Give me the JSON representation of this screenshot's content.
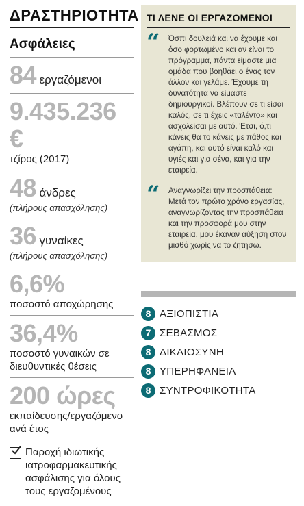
{
  "left": {
    "title": "ΔΡΑΣΤΗΡΙΟΤΗΤΑ",
    "sector": "Ασφάλειες",
    "stats": [
      {
        "big": "84",
        "inline": "εργαζόμενοι",
        "label": "",
        "note": ""
      },
      {
        "big": "9.435.236 €",
        "inline": "",
        "label": "τζίρος (2017)",
        "note": ""
      },
      {
        "big": "48",
        "inline": "άνδρες",
        "label": "",
        "note": "(πλήρους απασχόλησης)"
      },
      {
        "big": "36",
        "inline": "γυναίκες",
        "label": "",
        "note": "(πλήρους απασχόλησης)"
      },
      {
        "big": "6,6%",
        "inline": "",
        "label": "ποσοστό αποχώρησης",
        "note": ""
      },
      {
        "big": "36,4%",
        "inline": "",
        "label": "ποσοστό γυναικών σε διευθυντικές θέσεις",
        "note": ""
      },
      {
        "big": "200 ώρες",
        "inline": "",
        "label": "εκπαίδευσης/εργαζόμενο ανά έτος",
        "note": ""
      }
    ],
    "benefit": "Παροχή ιδιωτικής ιατροφαρμακευτικής ασφάλισης για όλους τους εργαζομένους",
    "check_icon": "checkmark-icon"
  },
  "right": {
    "heading": "ΤΙ ΛΕΝΕ ΟΙ ΕΡΓΑΖΟΜΕΝΟΙ",
    "quote_mark": "“",
    "quotes": [
      "Όσπι δουλειά και να έχουμε και όσο φορτωμένο και αν είναι το πρόγραμμα, πάντα είμαστε μια ομάδα που βοηθάει ο ένας τον άλλον και γελάμε. Έχουμε τη δυνατότητα να είμαστε δημιουργικοί. Βλέπουν σε τι είσαι καλός, σε τι έχεις «ταλέντο» και ασχολείσαι με αυτό. Έτσι, ό,τι κάνεις θα το κάνεις με πάθος και αγάπη, και αυτό είναι καλό και υγιές και για σένα, και για την εταιρεία.",
      "Αναγνωρίζει την προσπάθεια: Μετά τον πρώτο χρόνο εργασίας, αναγνωρίζοντας την προσπάθεια και την προσφορά μου στην εταιρεία, μου έκαναν αύξηση στον μισθό χωρίς να το ζητήσω."
    ],
    "values": [
      {
        "score": "8",
        "label": "ΑΞΙΟΠΙΣΤΙΑ"
      },
      {
        "score": "7",
        "label": "ΣΕΒΑΣΜΟΣ"
      },
      {
        "score": "8",
        "label": "ΔΙΚΑΙΟΣΥΝΗ"
      },
      {
        "score": "8",
        "label": "ΥΠΕΡΗΦΑΝΕΙΑ"
      },
      {
        "score": "8",
        "label": "ΣΥΝΤΡΟΦΙΚΟΤΗΤΑ"
      }
    ],
    "colors": {
      "accent": "#0c6b74",
      "panel": "#e8e6d4",
      "big_number": "#b5b5b5"
    }
  }
}
